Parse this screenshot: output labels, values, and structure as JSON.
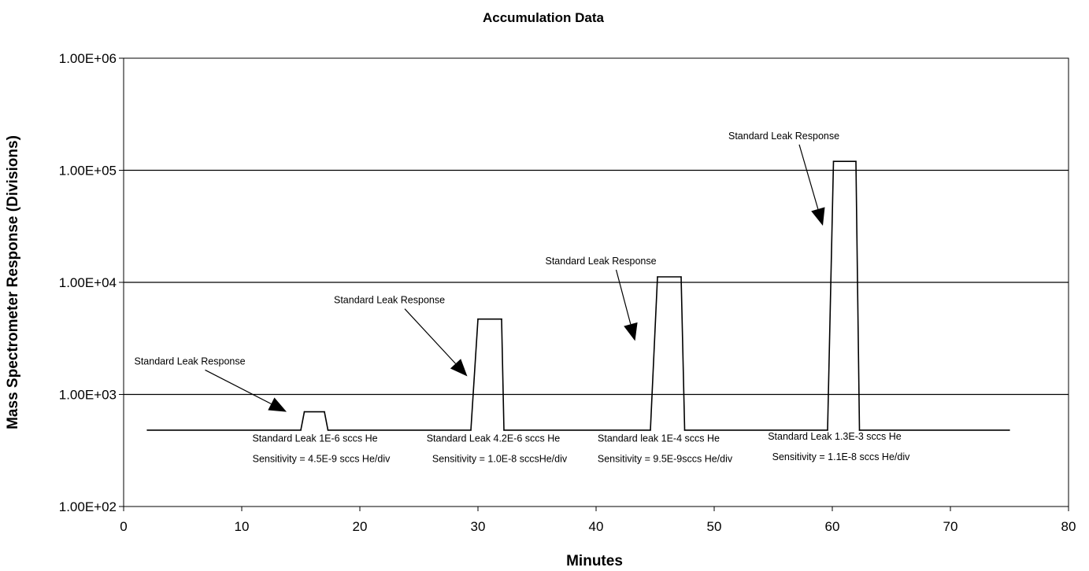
{
  "chart_data": {
    "type": "line",
    "title": "Accumulation Data",
    "xlabel": "Minutes",
    "ylabel": "Mass Spectrometer Response (Divisions)",
    "xlim": [
      0,
      80
    ],
    "ylim": [
      100,
      1000000
    ],
    "yscale": "log",
    "x_ticks": [
      0,
      10,
      20,
      30,
      40,
      50,
      60,
      70,
      80
    ],
    "x_tick_labels": [
      "0",
      "10",
      "20",
      "30",
      "40",
      "50",
      "60",
      "70",
      "80"
    ],
    "y_ticks": [
      100,
      1000,
      10000,
      100000,
      1000000
    ],
    "y_tick_labels": [
      "1.00E+02",
      "1.00E+03",
      "1.00E+04",
      "1.00E+05",
      "1.00E+06"
    ],
    "grid": "horizontal major gridlines",
    "legend": "none",
    "series": [
      {
        "values": [
          [
            2,
            480
          ],
          [
            15,
            480
          ],
          [
            15.3,
            700
          ],
          [
            17,
            700
          ],
          [
            17.3,
            480
          ],
          [
            29.4,
            480
          ],
          [
            30,
            4700
          ],
          [
            32,
            4700
          ],
          [
            32.2,
            480
          ],
          [
            44.6,
            480
          ],
          [
            45.2,
            11200
          ],
          [
            47.2,
            11200
          ],
          [
            47.5,
            480
          ],
          [
            59.6,
            480
          ],
          [
            60.1,
            120000
          ],
          [
            62,
            120000
          ],
          [
            62.3,
            480
          ],
          [
            75,
            480
          ]
        ]
      }
    ],
    "annotations": [
      {
        "label": "Standard Leak Response",
        "label_x": 0.9,
        "label_y": 1850,
        "tip_x": 13.8,
        "tip_y": 700
      },
      {
        "label": "Standard Leak Response",
        "label_x": 17.8,
        "label_y": 6500,
        "tip_x": 29.1,
        "tip_y": 1450
      },
      {
        "label": "Standard Leak Response",
        "label_x": 35.7,
        "label_y": 14500,
        "tip_x": 43.3,
        "tip_y": 3000
      },
      {
        "label": "Standard Leak Response",
        "label_x": 51.2,
        "label_y": 190000,
        "tip_x": 59.2,
        "tip_y": 32000
      }
    ],
    "notes": [
      {
        "lines": [
          "Standard Leak 1E-6 sccs He",
          "Sensitivity = 4.5E-9 sccs He/div"
        ],
        "x": 16.2,
        "y": 380
      },
      {
        "lines": [
          "Standard Leak 4.2E-6 sccs He",
          "Sensitivity = 1.0E-8 sccsHe/div"
        ],
        "x": 31.3,
        "y": 380
      },
      {
        "lines": [
          "Standard leak 1E-4 sccs He",
          "Sensitivity = 9.5E-9sccs He/div"
        ],
        "x": 45.3,
        "y": 380
      },
      {
        "lines": [
          "Standard Leak 1.3E-3 sccs He",
          "Sensitivity = 1.1E-8 sccs He/div"
        ],
        "x": 60.2,
        "y": 395
      }
    ],
    "line_color": "#000000"
  }
}
